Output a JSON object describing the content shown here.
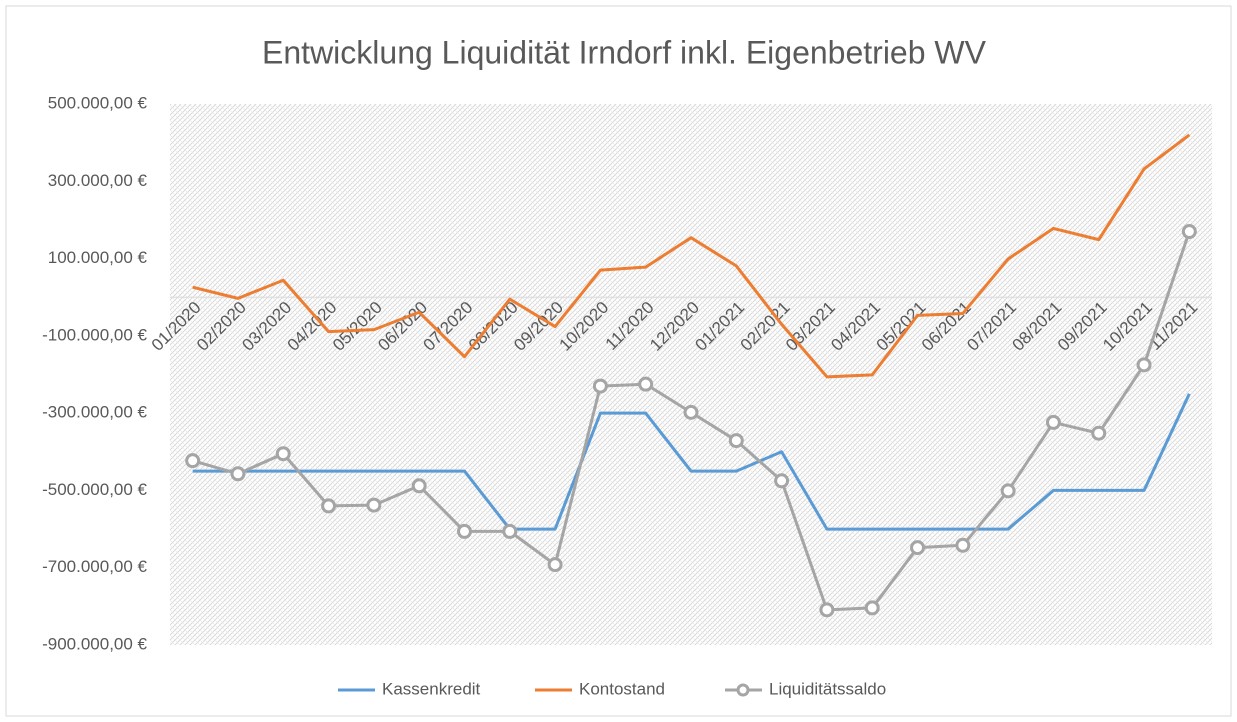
{
  "chart_data": {
    "type": "line",
    "title": "Entwicklung Liquidität Irndorf inkl. Eigenbetrieb WV",
    "categories": [
      "01/2020",
      "02/2020",
      "03/2020",
      "04/2020",
      "05/2020",
      "06/2020",
      "07/2020",
      "08/2020",
      "09/2020",
      "10/2020",
      "11/2020",
      "12/2020",
      "01/2021",
      "02/2021",
      "03/2021",
      "04/2021",
      "05/2021",
      "06/2021",
      "07/2021",
      "08/2021",
      "09/2021",
      "10/2021",
      "11/2021"
    ],
    "series": [
      {
        "name": "Kassenkredit",
        "color": "#5b9bd5",
        "marker": false,
        "values": [
          -450000,
          -450000,
          -450000,
          -450000,
          -450000,
          -450000,
          -450000,
          -600000,
          -600000,
          -300000,
          -300000,
          -450000,
          -450000,
          -400000,
          -600000,
          -600000,
          -600000,
          -600000,
          -600000,
          -500000,
          -500000,
          -500000,
          -250000
        ]
      },
      {
        "name": "Kontostand",
        "color": "#ed7d31",
        "marker": false,
        "values": [
          26000,
          -3000,
          44000,
          -89000,
          -84000,
          -39000,
          -154000,
          -5000,
          -76000,
          70000,
          78000,
          154000,
          81000,
          -70000,
          -206000,
          -201000,
          -47000,
          -42000,
          99000,
          178000,
          149000,
          332000,
          420000
        ]
      },
      {
        "name": "Liquiditätssaldo",
        "color": "#a5a5a5",
        "marker": true,
        "values": [
          -423000,
          -457000,
          -405000,
          -540000,
          -538000,
          -488000,
          -606000,
          -606000,
          -692000,
          -230000,
          -225000,
          -298000,
          -371000,
          -475000,
          -809000,
          -804000,
          -648000,
          -642000,
          -501000,
          -324000,
          -352000,
          -175000,
          170000
        ]
      }
    ],
    "ylim": [
      -900000,
      500000
    ],
    "yticks": [
      {
        "value": 500000,
        "label": "500.000,00 €"
      },
      {
        "value": 300000,
        "label": "300.000,00 €"
      },
      {
        "value": 100000,
        "label": "100.000,00 €"
      },
      {
        "value": -100000,
        "label": "-100.000,00 €"
      },
      {
        "value": -300000,
        "label": "-300.000,00 €"
      },
      {
        "value": -500000,
        "label": "-500.000,00 €"
      },
      {
        "value": -700000,
        "label": "-700.000,00 €"
      },
      {
        "value": -900000,
        "label": "-900.000,00 €"
      }
    ],
    "grid": false,
    "legend": "bottom"
  }
}
